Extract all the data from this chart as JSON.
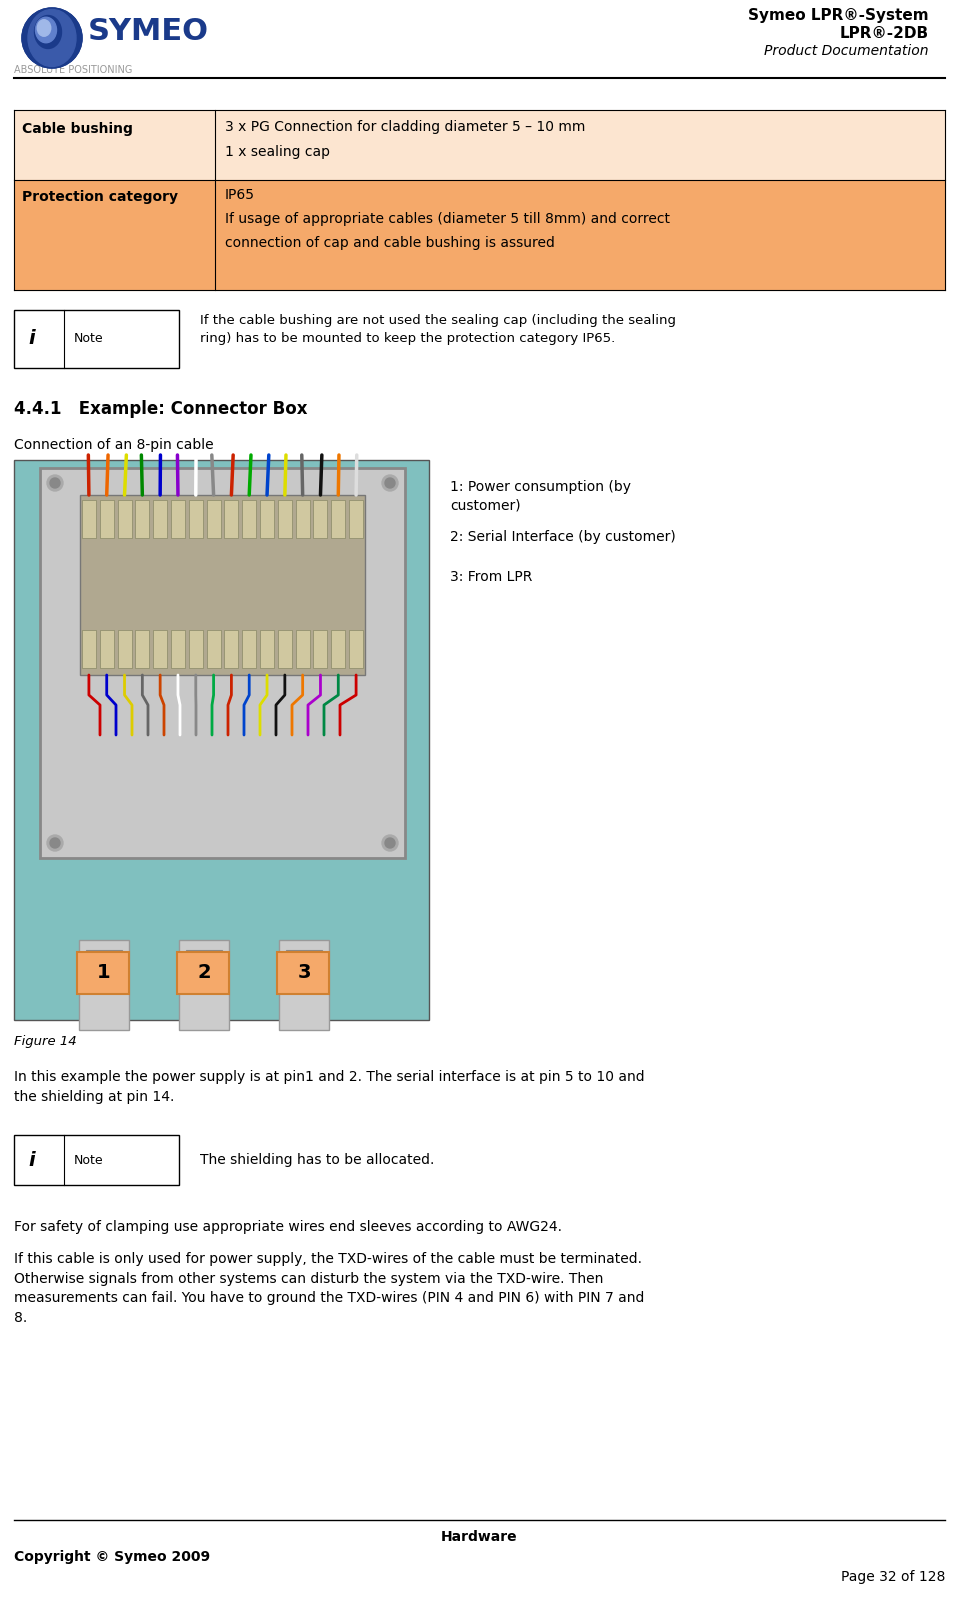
{
  "page_width": 9.59,
  "page_height": 15.98,
  "dpi": 100,
  "background_color": "#ffffff",
  "header": {
    "right_line1": "Symeo LPR®-System",
    "right_line2": "LPR®-2DB",
    "right_line3": "Product Documentation"
  },
  "table": {
    "row1_label": "Cable bushing",
    "row1_val1": "3 x PG Connection for cladding diameter 5 – 10 mm",
    "row1_val2": "1 x sealing cap",
    "row1_bg": "#fce5d0",
    "row2_label": "Protection category",
    "row2_val1": "IP65",
    "row2_val2": "If usage of appropriate cables (diameter 5 till 8mm) and correct",
    "row2_val3": "connection of cap and cable bushing is assured",
    "row2_bg": "#f5a96a"
  },
  "note1_text": "If the cable bushing are not used the sealing cap (including the sealing\nring) has to be mounted to keep the protection category IP65.",
  "section_title": "4.4.1   Example: Connector Box",
  "section_subtitle": "Connection of an 8-pin cable",
  "legend_lines": [
    "1: Power consumption (by\ncustomer)",
    "2: Serial Interface (by customer)",
    "3: From LPR"
  ],
  "figure_caption": "Figure 14",
  "body_text1": "In this example the power supply is at pin1 and 2. The serial interface is at pin 5 to 10 and\nthe shielding at pin 14.",
  "note2_text": "The shielding has to be allocated.",
  "body_text2": "For safety of clamping use appropriate wires end sleeves according to AWG24.",
  "body_text3": "If this cable is only used for power supply, the TXD-wires of the cable must be terminated.\nOtherwise signals from other systems can disturb the system via the TXD-wire. Then\nmeasurements can fail. You have to ground the TXD-wires (PIN 4 and PIN 6) with PIN 7 and\n8.",
  "footer_center": "Hardware",
  "footer_left": "Copyright © Symeo 2009",
  "footer_right": "Page 32 of 128",
  "colors": {
    "table_row1_bg": "#fce5d0",
    "table_row2_bg": "#f5a96a",
    "separator": "#000000",
    "logo_blue_dark": "#1a3a8a",
    "logo_blue_mid": "#3a5aaa",
    "logo_blue_light": "#6080cc",
    "text_main": "#000000",
    "note_box_border": "#000000",
    "teal_bg": "#80c0bf",
    "label_orange": "#f5a96a",
    "label_orange_border": "#d08030"
  }
}
